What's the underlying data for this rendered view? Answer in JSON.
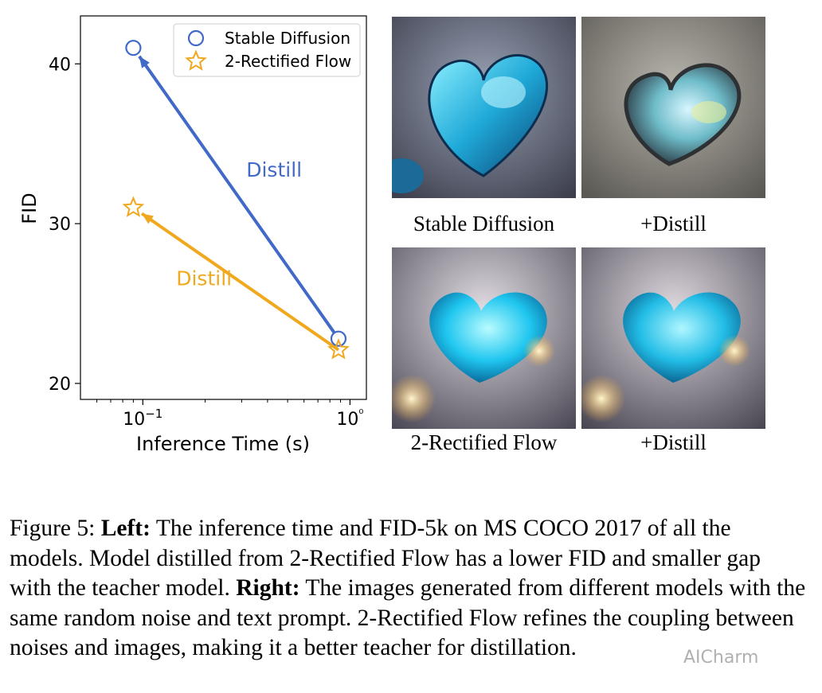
{
  "chart_data": {
    "type": "scatter",
    "title": "",
    "xlabel": "Inference Time (s)",
    "ylabel": "FID",
    "xscale": "log",
    "xlim": [
      0.05,
      1.2
    ],
    "ylim": [
      19,
      43
    ],
    "x_ticks": [
      {
        "value": 0.1,
        "label": "10−1"
      },
      {
        "value": 1,
        "label": "10⁰"
      }
    ],
    "y_ticks": [
      20,
      30,
      40
    ],
    "legend_position": "top-right",
    "series": [
      {
        "name": "Stable Diffusion",
        "marker": "circle",
        "color": "#4169c8",
        "points": [
          {
            "x": 0.09,
            "y": 41
          },
          {
            "x": 0.88,
            "y": 22.8
          }
        ]
      },
      {
        "name": "2-Rectified Flow",
        "marker": "star",
        "color": "#f0a81e",
        "points": [
          {
            "x": 0.09,
            "y": 31
          },
          {
            "x": 0.88,
            "y": 22.1
          }
        ]
      }
    ],
    "arrows": [
      {
        "series": "Stable Diffusion",
        "from": {
          "x": 0.88,
          "y": 22.8
        },
        "to": {
          "x": 0.09,
          "y": 41
        },
        "label": "Distill",
        "color": "#4169c8"
      },
      {
        "series": "2-Rectified Flow",
        "from": {
          "x": 0.88,
          "y": 22.1
        },
        "to": {
          "x": 0.09,
          "y": 31
        },
        "label": "Distill",
        "color": "#f0a81e"
      }
    ]
  },
  "images": {
    "sd_caption": "Stable Diffusion",
    "sd_distill_caption": "+Distill",
    "rf_caption": "2-Rectified Flow",
    "rf_distill_caption": "+Distill"
  },
  "caption": {
    "figure_label": "Figure 5:",
    "left_label": "Left:",
    "left_text": "The inference time and FID-5k on MS COCO 2017 of all the models. Model distilled from 2-Rectified Flow has a lower FID and smaller gap with the teacher model.",
    "right_label": "Right:",
    "right_text": "The images generated from different models with the same random noise and text prompt. 2-Rectified Flow refines the coupling between noises and images, making it a better teacher for distillation."
  },
  "watermark": "AICharm"
}
